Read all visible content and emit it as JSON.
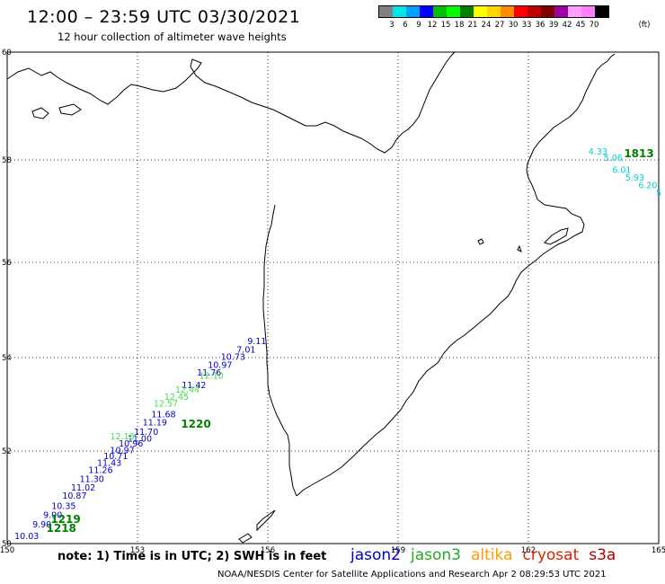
{
  "header": {
    "title": "12:00 – 23:59 UTC 03/30/2021",
    "subtitle": "12 hour collection of altimeter wave heights"
  },
  "legend": {
    "unit": "(ft)",
    "colors": [
      "#808080",
      "#00e5e5",
      "#00a0ff",
      "#0000ff",
      "#00c000",
      "#00ff00",
      "#008000",
      "#ffff00",
      "#ffd700",
      "#ff8c00",
      "#ff0000",
      "#c00000",
      "#800000",
      "#a000a0",
      "#ffa0ff",
      "#ff80ff",
      "#000000"
    ],
    "labels": [
      "3",
      "6",
      "9",
      "12",
      "15",
      "18",
      "21",
      "24",
      "27",
      "30",
      "33",
      "36",
      "39",
      "42",
      "45",
      "70"
    ]
  },
  "map": {
    "lon_ticks": [
      "150",
      "153",
      "156",
      "159",
      "162",
      "165"
    ],
    "lat_ticks": [
      "60",
      "58",
      "56",
      "54",
      "52",
      "50"
    ]
  },
  "tracks": [
    {
      "mission": "jason2",
      "color": "#0000cc",
      "points": [
        {
          "lon": 150.45,
          "lat": 50.1,
          "v": "10.03"
        },
        {
          "lon": 150.8,
          "lat": 50.35,
          "v": "9.90"
        },
        {
          "lon": 151.05,
          "lat": 50.55,
          "v": "9.90"
        },
        {
          "lon": 151.3,
          "lat": 50.75,
          "v": "10.35"
        },
        {
          "lon": 151.55,
          "lat": 50.97,
          "v": "10.87"
        },
        {
          "lon": 151.75,
          "lat": 51.15,
          "v": "11.02"
        },
        {
          "lon": 151.95,
          "lat": 51.33,
          "v": "11.30"
        },
        {
          "lon": 152.15,
          "lat": 51.52,
          "v": "11.26"
        },
        {
          "lon": 152.35,
          "lat": 51.68,
          "v": "11.43"
        },
        {
          "lon": 152.5,
          "lat": 51.83,
          "v": "10.71"
        },
        {
          "lon": 152.65,
          "lat": 51.95,
          "v": "10.97"
        },
        {
          "lon": 152.85,
          "lat": 52.1,
          "v": "10.96"
        },
        {
          "lon": 153.05,
          "lat": 52.2,
          "v": "11.00"
        },
        {
          "lon": 153.2,
          "lat": 52.35,
          "v": "11.70"
        },
        {
          "lon": 153.4,
          "lat": 52.55,
          "v": "11.19"
        },
        {
          "lon": 153.6,
          "lat": 52.72,
          "v": "11.68"
        },
        {
          "lon": 154.3,
          "lat": 53.35,
          "v": "11.42"
        },
        {
          "lon": 154.65,
          "lat": 53.62,
          "v": "11.76"
        },
        {
          "lon": 154.9,
          "lat": 53.78,
          "v": "10.97"
        },
        {
          "lon": 155.2,
          "lat": 53.95,
          "v": "10.73"
        },
        {
          "lon": 155.5,
          "lat": 54.1,
          "v": "7.01"
        },
        {
          "lon": 155.75,
          "lat": 54.28,
          "v": "9.11"
        }
      ]
    },
    {
      "mission": "jason3",
      "color": "#44dd44",
      "points": [
        {
          "lon": 152.65,
          "lat": 52.25,
          "v": "12.18"
        },
        {
          "lon": 153.65,
          "lat": 52.95,
          "v": "12.57"
        },
        {
          "lon": 153.9,
          "lat": 53.1,
          "v": "12.45"
        },
        {
          "lon": 154.15,
          "lat": 53.25,
          "v": "12.44"
        },
        {
          "lon": 154.7,
          "lat": 53.55,
          "v": "12.10"
        }
      ]
    },
    {
      "mission": "s3a",
      "color": "#00ccdd",
      "points": [
        {
          "lon": 163.6,
          "lat": 58.1,
          "v": "4.33"
        },
        {
          "lon": 163.95,
          "lat": 57.98,
          "v": "5.06"
        },
        {
          "lon": 164.15,
          "lat": 57.75,
          "v": "6.01"
        },
        {
          "lon": 164.45,
          "lat": 57.6,
          "v": "5.93"
        },
        {
          "lon": 164.75,
          "lat": 57.45,
          "v": "6.20"
        },
        {
          "lon": 165.0,
          "lat": 57.3,
          "v": "5"
        }
      ]
    }
  ],
  "time_labels": [
    {
      "text": "1220",
      "lon": 154.0,
      "lat": 52.5
    },
    {
      "text": "1219",
      "lon": 151.0,
      "lat": 50.45
    },
    {
      "text": "1218",
      "lon": 150.9,
      "lat": 50.25
    },
    {
      "text": "1813",
      "lon": 164.2,
      "lat": 58.05
    }
  ],
  "footer": {
    "note": "note:  1) Time is in UTC;  2) SWH is in feet",
    "missions": [
      {
        "name": "jason2",
        "color": "#0000cc"
      },
      {
        "name": "jason3",
        "color": "#22aa22"
      },
      {
        "name": "altika",
        "color": "#ff9900"
      },
      {
        "name": "cryosat",
        "color": "#dd2200"
      },
      {
        "name": "s3a",
        "color": "#b00000"
      }
    ],
    "credit": "NOAA/NESDIS Center for Satellite Applications and Research    Apr  2 08:29:53 UTC 2021"
  }
}
